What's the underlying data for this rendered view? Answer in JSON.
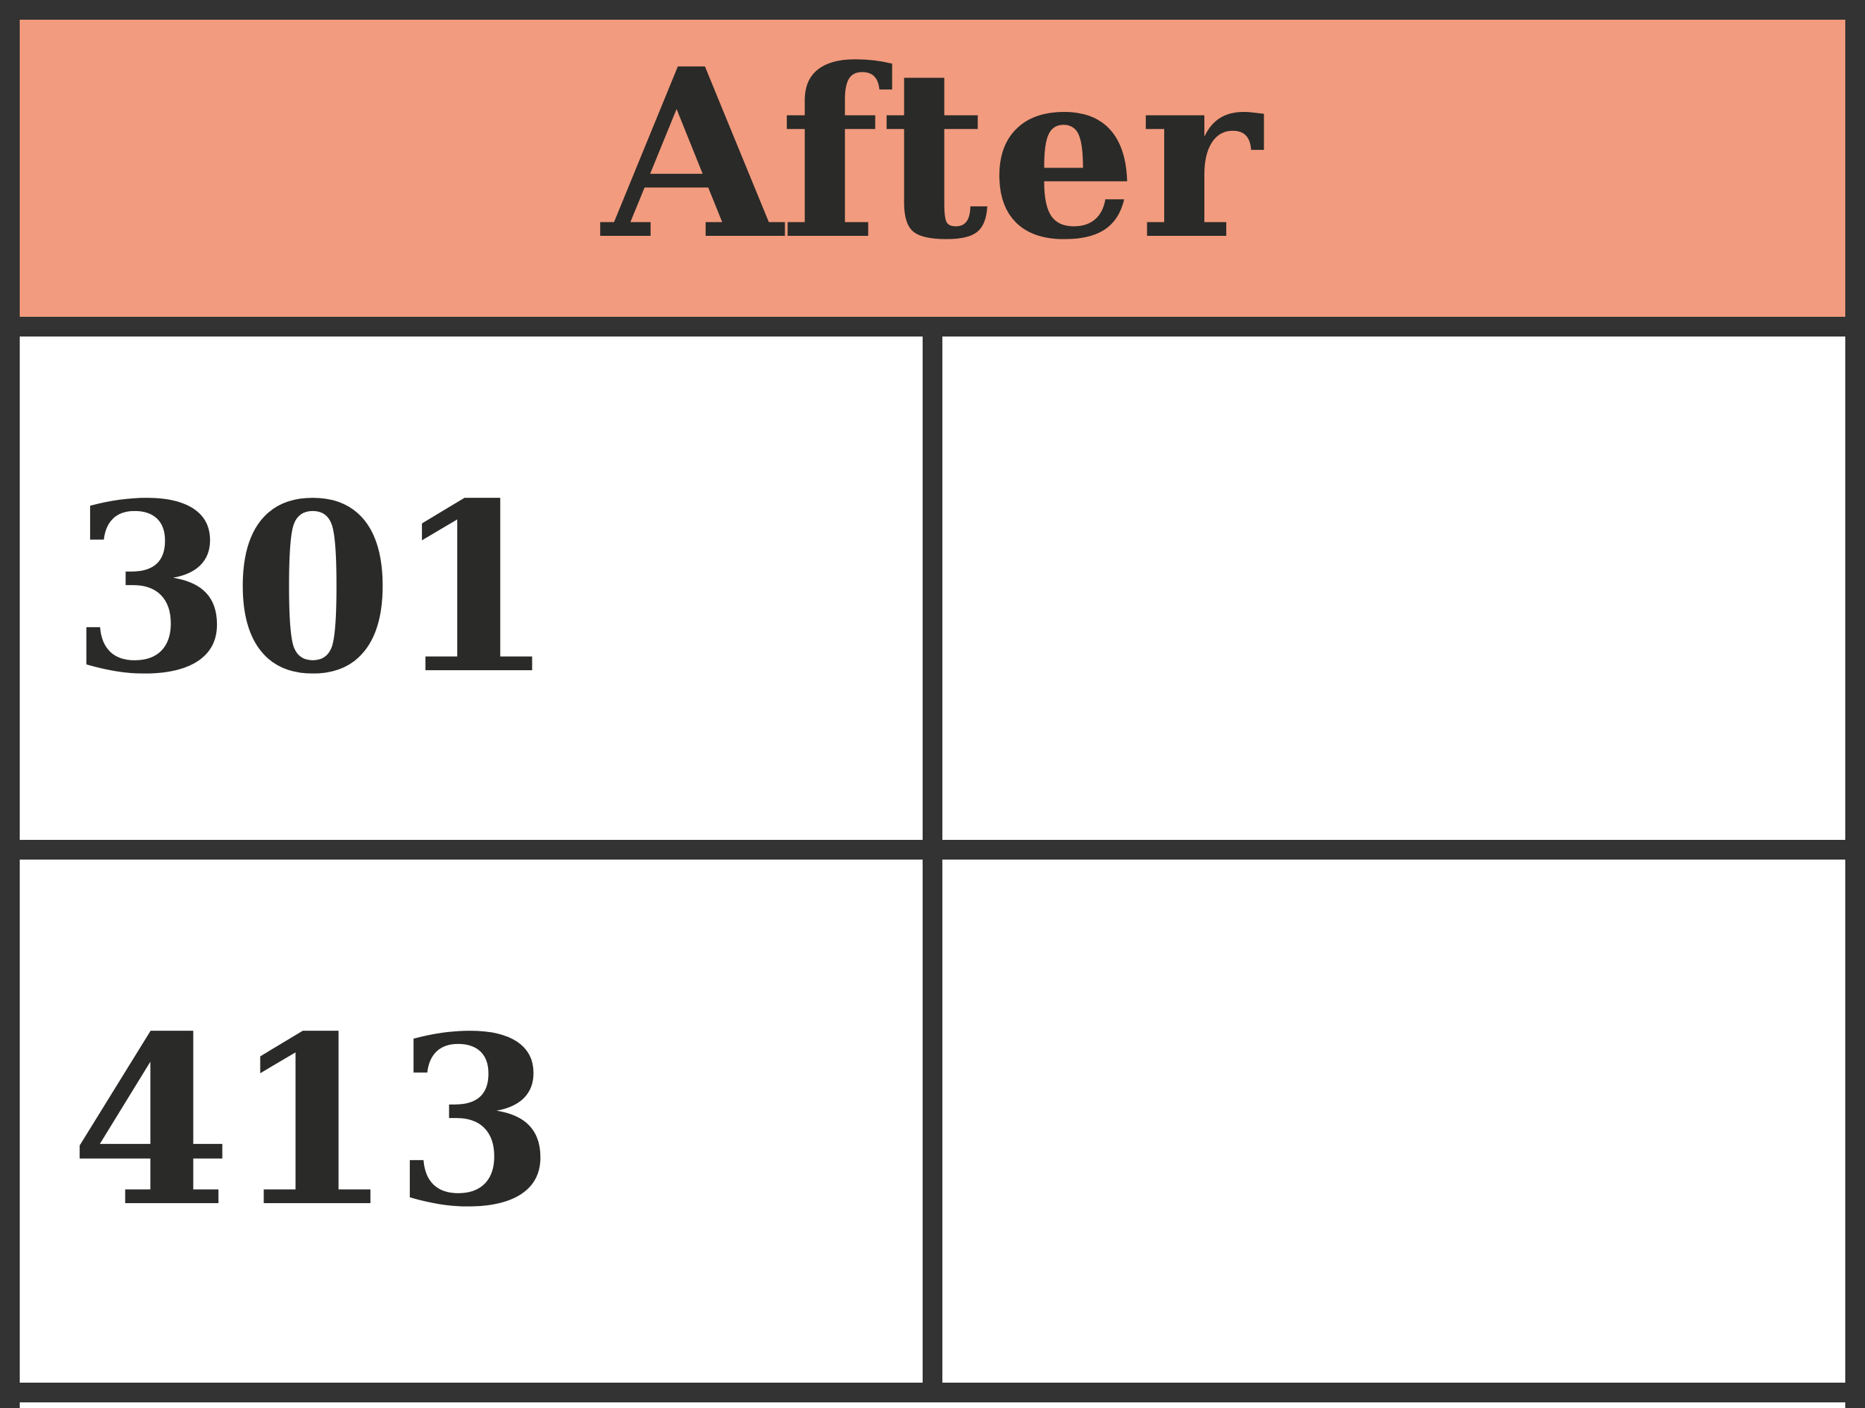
{
  "header": {
    "title": "After"
  },
  "rows": [
    {
      "left": "301",
      "right": ""
    },
    {
      "left": "413",
      "right": ""
    }
  ],
  "colors": {
    "header_fill": "#f29b7e",
    "border": "#333333",
    "text": "#2a2a28",
    "cell_fill": "#ffffff"
  }
}
